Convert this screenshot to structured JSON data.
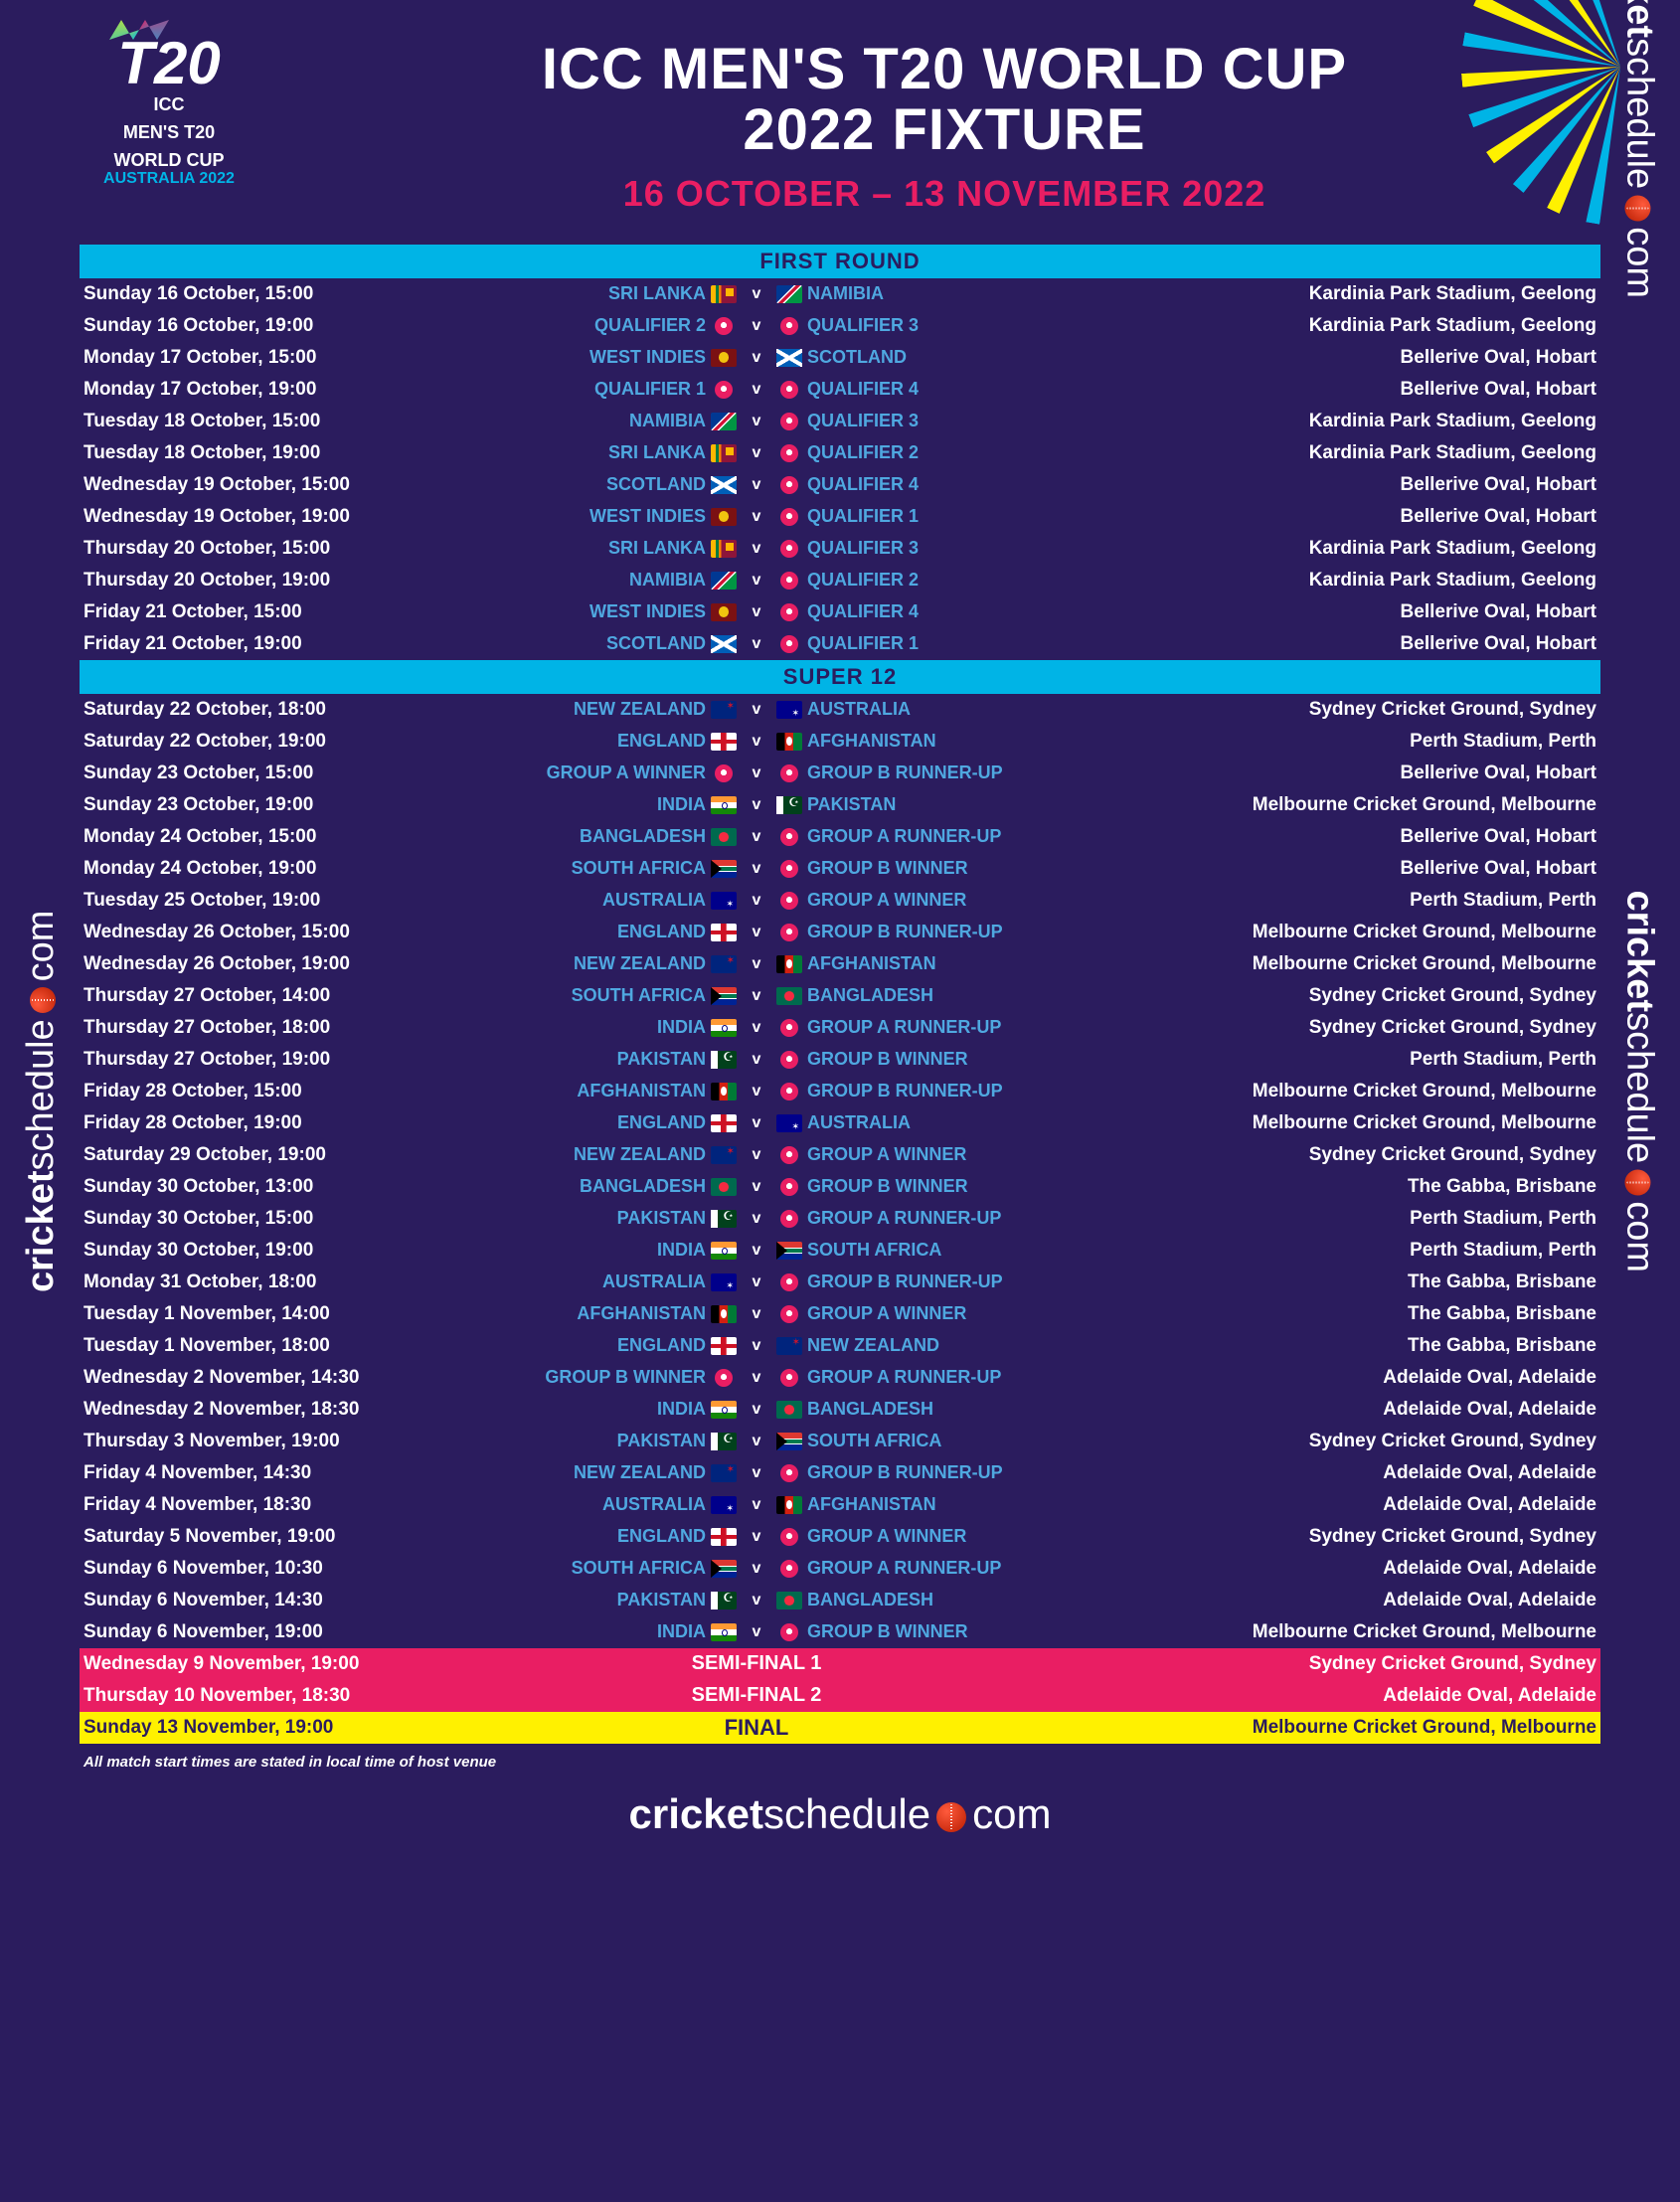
{
  "colors": {
    "background": "#2b1c5e",
    "accent_blue": "#00b4e6",
    "accent_pink": "#e91e63",
    "accent_yellow": "#fff100",
    "team_text": "#4fa8e0"
  },
  "logo": {
    "mark": "T20",
    "line1": "ICC",
    "line2": "MEN'S T20",
    "line3": "WORLD CUP",
    "year": "AUSTRALIA 2022"
  },
  "title_line1": "ICC MEN'S T20 WORLD CUP",
  "title_line2": "2022 FIXTURE",
  "date_range": "16 OCTOBER – 13 NOVEMBER 2022",
  "sections": {
    "first_round": "FIRST ROUND",
    "super_12": "SUPER 12"
  },
  "vs": "v",
  "note": "All match start times are stated in local time of host venue",
  "brand_part1": "cricket",
  "brand_part2": "schedule",
  "brand_part3": "com",
  "flags": {
    "SRI LANKA": "LKA",
    "NAMIBIA": "NAM",
    "WEST INDIES": "WIN",
    "SCOTLAND": "SCO",
    "NEW ZEALAND": "NZL",
    "AUSTRALIA": "AUS",
    "ENGLAND": "ENG",
    "AFGHANISTAN": "AFG",
    "INDIA": "IND",
    "PAKISTAN": "PAK",
    "BANGLADESH": "BAN",
    "SOUTH AFRICA": "RSA"
  },
  "first_round": [
    {
      "dt": "Sunday 16 October, 15:00",
      "h": "SRI LANKA",
      "a": "NAMIBIA",
      "v": "Kardinia Park Stadium, Geelong"
    },
    {
      "dt": "Sunday 16 October, 19:00",
      "h": "QUALIFIER 2",
      "a": "QUALIFIER 3",
      "v": "Kardinia Park Stadium, Geelong"
    },
    {
      "dt": "Monday 17 October, 15:00",
      "h": "WEST INDIES",
      "a": "SCOTLAND",
      "v": "Bellerive Oval, Hobart"
    },
    {
      "dt": "Monday 17 October, 19:00",
      "h": "QUALIFIER 1",
      "a": "QUALIFIER 4",
      "v": "Bellerive Oval, Hobart"
    },
    {
      "dt": "Tuesday 18 October, 15:00",
      "h": "NAMIBIA",
      "a": "QUALIFIER 3",
      "v": "Kardinia Park Stadium, Geelong"
    },
    {
      "dt": "Tuesday 18 October, 19:00",
      "h": "SRI LANKA",
      "a": "QUALIFIER 2",
      "v": "Kardinia Park Stadium, Geelong"
    },
    {
      "dt": "Wednesday 19 October, 15:00",
      "h": "SCOTLAND",
      "a": "QUALIFIER 4",
      "v": "Bellerive Oval, Hobart"
    },
    {
      "dt": "Wednesday 19 October, 19:00",
      "h": "WEST INDIES",
      "a": "QUALIFIER 1",
      "v": "Bellerive Oval, Hobart"
    },
    {
      "dt": "Thursday 20 October, 15:00",
      "h": "SRI LANKA",
      "a": "QUALIFIER 3",
      "v": "Kardinia Park Stadium, Geelong"
    },
    {
      "dt": "Thursday 20 October, 19:00",
      "h": "NAMIBIA",
      "a": "QUALIFIER 2",
      "v": "Kardinia Park Stadium, Geelong"
    },
    {
      "dt": "Friday 21 October, 15:00",
      "h": "WEST INDIES",
      "a": "QUALIFIER 4",
      "v": "Bellerive Oval, Hobart"
    },
    {
      "dt": "Friday 21 October, 19:00",
      "h": "SCOTLAND",
      "a": "QUALIFIER 1",
      "v": "Bellerive Oval, Hobart"
    }
  ],
  "super_12": [
    {
      "dt": "Saturday 22 October, 18:00",
      "h": "NEW ZEALAND",
      "a": "AUSTRALIA",
      "v": "Sydney Cricket Ground, Sydney"
    },
    {
      "dt": "Saturday 22 October, 19:00",
      "h": "ENGLAND",
      "a": "AFGHANISTAN",
      "v": "Perth Stadium, Perth"
    },
    {
      "dt": "Sunday 23 October, 15:00",
      "h": "GROUP A WINNER",
      "a": "GROUP B RUNNER-UP",
      "v": "Bellerive Oval, Hobart"
    },
    {
      "dt": "Sunday 23 October, 19:00",
      "h": "INDIA",
      "a": "PAKISTAN",
      "v": "Melbourne Cricket Ground, Melbourne"
    },
    {
      "dt": "Monday 24 October, 15:00",
      "h": "BANGLADESH",
      "a": "GROUP A RUNNER-UP",
      "v": "Bellerive Oval, Hobart"
    },
    {
      "dt": "Monday 24 October, 19:00",
      "h": "SOUTH AFRICA",
      "a": "GROUP B WINNER",
      "v": "Bellerive Oval, Hobart"
    },
    {
      "dt": "Tuesday 25 October, 19:00",
      "h": "AUSTRALIA",
      "a": "GROUP A WINNER",
      "v": "Perth Stadium, Perth"
    },
    {
      "dt": "Wednesday 26 October, 15:00",
      "h": "ENGLAND",
      "a": "GROUP B RUNNER-UP",
      "v": "Melbourne Cricket Ground, Melbourne"
    },
    {
      "dt": "Wednesday 26 October, 19:00",
      "h": "NEW ZEALAND",
      "a": "AFGHANISTAN",
      "v": "Melbourne Cricket Ground, Melbourne"
    },
    {
      "dt": "Thursday 27 October, 14:00",
      "h": "SOUTH AFRICA",
      "a": "BANGLADESH",
      "v": "Sydney Cricket Ground, Sydney"
    },
    {
      "dt": "Thursday 27 October, 18:00",
      "h": "INDIA",
      "a": "GROUP A RUNNER-UP",
      "v": "Sydney Cricket Ground, Sydney"
    },
    {
      "dt": "Thursday 27 October, 19:00",
      "h": "PAKISTAN",
      "a": "GROUP B WINNER",
      "v": "Perth Stadium, Perth"
    },
    {
      "dt": "Friday 28 October, 15:00",
      "h": "AFGHANISTAN",
      "a": "GROUP B RUNNER-UP",
      "v": "Melbourne Cricket Ground, Melbourne"
    },
    {
      "dt": "Friday 28 October, 19:00",
      "h": "ENGLAND",
      "a": "AUSTRALIA",
      "v": "Melbourne Cricket Ground, Melbourne"
    },
    {
      "dt": "Saturday 29 October, 19:00",
      "h": "NEW ZEALAND",
      "a": "GROUP A WINNER",
      "v": "Sydney Cricket Ground, Sydney"
    },
    {
      "dt": "Sunday 30 October, 13:00",
      "h": "BANGLADESH",
      "a": "GROUP B WINNER",
      "v": "The Gabba, Brisbane"
    },
    {
      "dt": "Sunday 30 October, 15:00",
      "h": "PAKISTAN",
      "a": "GROUP A RUNNER-UP",
      "v": "Perth Stadium, Perth"
    },
    {
      "dt": "Sunday 30 October, 19:00",
      "h": "INDIA",
      "a": "SOUTH AFRICA",
      "v": "Perth Stadium, Perth"
    },
    {
      "dt": "Monday 31 October, 18:00",
      "h": "AUSTRALIA",
      "a": "GROUP B RUNNER-UP",
      "v": "The Gabba, Brisbane"
    },
    {
      "dt": "Tuesday 1 November, 14:00",
      "h": "AFGHANISTAN",
      "a": "GROUP A WINNER",
      "v": "The Gabba, Brisbane"
    },
    {
      "dt": "Tuesday 1 November, 18:00",
      "h": "ENGLAND",
      "a": "NEW ZEALAND",
      "v": "The Gabba, Brisbane"
    },
    {
      "dt": "Wednesday 2 November, 14:30",
      "h": "GROUP B WINNER",
      "a": "GROUP A RUNNER-UP",
      "v": "Adelaide Oval, Adelaide"
    },
    {
      "dt": "Wednesday 2 November, 18:30",
      "h": "INDIA",
      "a": "BANGLADESH",
      "v": "Adelaide Oval, Adelaide"
    },
    {
      "dt": "Thursday 3 November, 19:00",
      "h": "PAKISTAN",
      "a": "SOUTH AFRICA",
      "v": "Sydney Cricket Ground, Sydney"
    },
    {
      "dt": "Friday 4 November, 14:30",
      "h": "NEW ZEALAND",
      "a": "GROUP B RUNNER-UP",
      "v": "Adelaide Oval, Adelaide"
    },
    {
      "dt": "Friday 4 November, 18:30",
      "h": "AUSTRALIA",
      "a": "AFGHANISTAN",
      "v": "Adelaide Oval, Adelaide"
    },
    {
      "dt": "Saturday 5 November, 19:00",
      "h": "ENGLAND",
      "a": "GROUP A WINNER",
      "v": "Sydney Cricket Ground, Sydney"
    },
    {
      "dt": "Sunday 6 November, 10:30",
      "h": "SOUTH AFRICA",
      "a": "GROUP A RUNNER-UP",
      "v": "Adelaide Oval, Adelaide"
    },
    {
      "dt": "Sunday 6 November, 14:30",
      "h": "PAKISTAN",
      "a": "BANGLADESH",
      "v": "Adelaide Oval, Adelaide"
    },
    {
      "dt": "Sunday 6 November, 19:00",
      "h": "INDIA",
      "a": "GROUP B WINNER",
      "v": "Melbourne Cricket Ground, Melbourne"
    }
  ],
  "knockouts": [
    {
      "dt": "Wednesday 9 November, 19:00",
      "label": "SEMI-FINAL 1",
      "v": "Sydney Cricket Ground, Sydney",
      "cls": "sf"
    },
    {
      "dt": "Thursday 10 November, 18:30",
      "label": "SEMI-FINAL 2",
      "v": "Adelaide Oval, Adelaide",
      "cls": "sf"
    },
    {
      "dt": "Sunday 13 November, 19:00",
      "label": "FINAL",
      "v": "Melbourne Cricket Ground, Melbourne",
      "cls": "final"
    }
  ]
}
